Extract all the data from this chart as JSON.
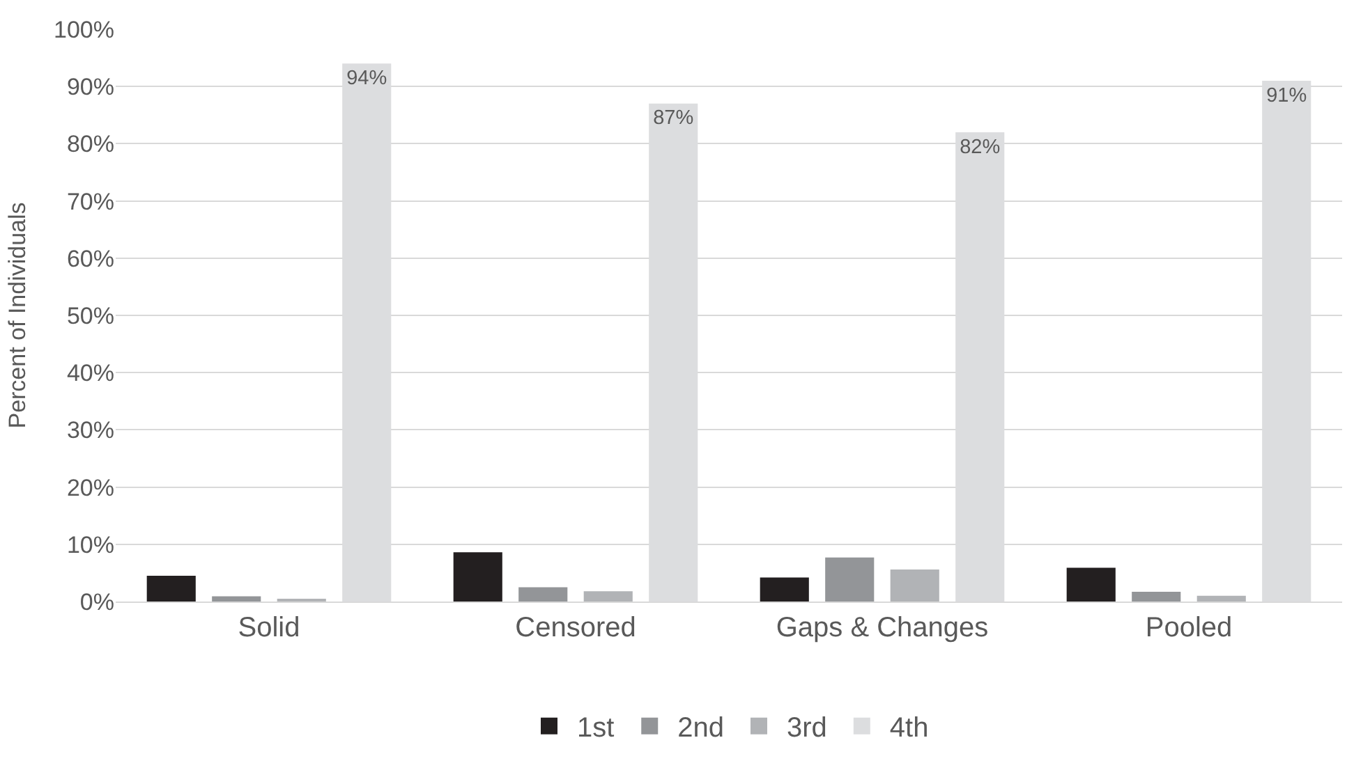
{
  "chart_data": {
    "type": "bar",
    "ylabel": "Percent of Individuals",
    "categories": [
      "Solid",
      "Censored",
      "Gaps & Changes",
      "Pooled"
    ],
    "series": [
      {
        "name": "1st",
        "color": "#231f20",
        "values": [
          4.5,
          8.6,
          4.2,
          5.9
        ]
      },
      {
        "name": "2nd",
        "color": "#939598",
        "values": [
          0.9,
          2.5,
          7.7,
          1.7
        ]
      },
      {
        "name": "3rd",
        "color": "#b1b3b6",
        "values": [
          0.5,
          1.8,
          5.6,
          1.0
        ]
      },
      {
        "name": "4th",
        "color": "#dcdddf",
        "values": [
          94,
          87,
          82,
          91
        ],
        "value_labels": [
          "94%",
          "87%",
          "82%",
          "91%"
        ]
      }
    ],
    "ylim": [
      0,
      100
    ],
    "yticks": [
      {
        "value": 0,
        "label": "0%"
      },
      {
        "value": 10,
        "label": "10%"
      },
      {
        "value": 20,
        "label": "20%"
      },
      {
        "value": 30,
        "label": "30%"
      },
      {
        "value": 40,
        "label": "40%"
      },
      {
        "value": 50,
        "label": "50%"
      },
      {
        "value": 60,
        "label": "60%"
      },
      {
        "value": 70,
        "label": "70%"
      },
      {
        "value": 80,
        "label": "80%"
      },
      {
        "value": 90,
        "label": "90%"
      },
      {
        "value": 100,
        "label": "100%"
      }
    ],
    "grid": "y",
    "legend": "bottom"
  }
}
